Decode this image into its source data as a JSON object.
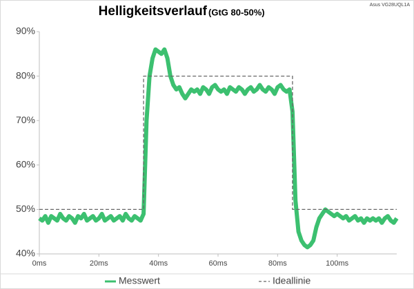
{
  "chart_data": {
    "type": "line",
    "title": "Helligkeitsverlauf",
    "subtitle": "(GtG 80-50%)",
    "annotation": "Asus VG28UQL1A",
    "xlim": [
      0,
      120
    ],
    "ylim": [
      40,
      90
    ],
    "xticks": [
      {
        "value": 0,
        "label": "0ms"
      },
      {
        "value": 20,
        "label": "20ms"
      },
      {
        "value": 40,
        "label": "40ms"
      },
      {
        "value": 60,
        "label": "60ms"
      },
      {
        "value": 80,
        "label": "80ms"
      },
      {
        "value": 100,
        "label": "100ms"
      }
    ],
    "yticks": [
      {
        "value": 40,
        "label": "40%"
      },
      {
        "value": 50,
        "label": "50%"
      },
      {
        "value": 60,
        "label": "60%"
      },
      {
        "value": 70,
        "label": "70%"
      },
      {
        "value": 80,
        "label": "80%"
      },
      {
        "value": 90,
        "label": "90%"
      }
    ],
    "grid": false,
    "legend": "bottom",
    "series": [
      {
        "name": "Messwert",
        "color": "#3cc070",
        "style": "solid",
        "x": [
          0,
          1,
          2,
          3,
          4,
          5,
          6,
          7,
          8,
          9,
          10,
          11,
          12,
          13,
          14,
          15,
          16,
          17,
          18,
          19,
          20,
          21,
          22,
          23,
          24,
          25,
          26,
          27,
          28,
          29,
          30,
          31,
          32,
          33,
          34,
          35,
          36,
          37,
          38,
          39,
          40,
          41,
          42,
          43,
          44,
          45,
          46,
          47,
          48,
          49,
          50,
          51,
          52,
          53,
          54,
          55,
          56,
          57,
          58,
          59,
          60,
          61,
          62,
          63,
          64,
          65,
          66,
          67,
          68,
          69,
          70,
          71,
          72,
          73,
          74,
          75,
          76,
          77,
          78,
          79,
          80,
          81,
          82,
          83,
          84,
          85,
          86,
          87,
          88,
          89,
          90,
          91,
          92,
          93,
          94,
          95,
          96,
          97,
          98,
          99,
          100,
          101,
          102,
          103,
          104,
          105,
          106,
          107,
          108,
          109,
          110,
          111,
          112,
          113,
          114,
          115,
          116,
          117,
          118,
          119,
          120
        ],
        "values": [
          48,
          47.5,
          48.5,
          47,
          48.5,
          48,
          47.5,
          49,
          48,
          47.5,
          48.5,
          48,
          47,
          48.5,
          48,
          49,
          47.5,
          48,
          48.5,
          47.5,
          48,
          49,
          47.5,
          48,
          48.5,
          47.5,
          48,
          48.5,
          47.5,
          49,
          48,
          47.5,
          48.5,
          48,
          47.5,
          49,
          70,
          80,
          84,
          86,
          85.5,
          85,
          86,
          84,
          80,
          78,
          77,
          77.5,
          76,
          75,
          76,
          77,
          76.5,
          77,
          76,
          77.5,
          77,
          76,
          77.5,
          78,
          77,
          76.5,
          77,
          76,
          77.5,
          77,
          76.5,
          77.5,
          77,
          76,
          77,
          77.5,
          76.5,
          77,
          78,
          77,
          76.5,
          77.5,
          77,
          76,
          77.5,
          78,
          77,
          76.5,
          77,
          72,
          52,
          45,
          43,
          42,
          41.5,
          42,
          43,
          46,
          48,
          49,
          50,
          49.5,
          49,
          48.5,
          49,
          48.5,
          48,
          48.5,
          47.5,
          48,
          48.5,
          47.5,
          48,
          47,
          48,
          47.5,
          48,
          47.5,
          48,
          47,
          48,
          48.5,
          47.5,
          47,
          48
        ]
      },
      {
        "name": "Ideallinie",
        "color": "#666666",
        "style": "dashed",
        "x": [
          0,
          35,
          35,
          85,
          85,
          120
        ],
        "values": [
          50,
          50,
          80,
          80,
          50,
          50
        ]
      }
    ]
  }
}
